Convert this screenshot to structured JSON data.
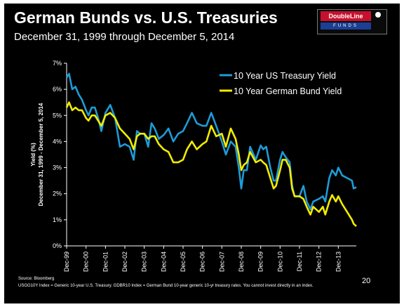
{
  "slide": {
    "title": "German Bunds vs. U.S. Treasuries",
    "subtitle": "December 31, 1999 through December 5, 2014",
    "logo_main": "DoubleLine",
    "logo_sub": "FUNDS",
    "source": "Source: Bloomberg",
    "footnote": "USGG10Y Index = Generic 10-year U.S. Treasury. GDBR10 Index = German Bund 10-year generic 10-yr treasury rates. You cannot invest directly in an index.",
    "page_number": "20"
  },
  "colors": {
    "us": "#1e9bd7",
    "german": "#f2ec00",
    "background": "#000000",
    "text": "#ffffff"
  },
  "chart_data": {
    "type": "line",
    "title": "German Bunds vs. U.S. Treasuries",
    "ylabel_lines": [
      "Yield (%)",
      "December 31, 1999 - December 5, 2014"
    ],
    "ylim": [
      0,
      7
    ],
    "yticks": [
      "0%",
      "1%",
      "2%",
      "3%",
      "4%",
      "5%",
      "6%",
      "7%"
    ],
    "xticks": [
      "Dec-99",
      "Dec-00",
      "Dec-01",
      "Dec-02",
      "Dec-03",
      "Dec-04",
      "Dec-05",
      "Dec-06",
      "Dec-07",
      "Dec-08",
      "Dec-09",
      "Dec-10",
      "Dec-11",
      "Dec-12",
      "Dec-13"
    ],
    "xlim": [
      "1999-12-31",
      "2014-12-05"
    ],
    "grid": false,
    "legend_position": "top-right",
    "series": [
      {
        "name": "10 Year US Treasury Yield",
        "color": "#1e9bd7",
        "x": [
          "1999-12-31",
          "2000-02-15",
          "2000-04-15",
          "2000-06-15",
          "2000-08-15",
          "2000-10-15",
          "2000-12-31",
          "2001-02-15",
          "2001-04-15",
          "2001-06-15",
          "2001-08-15",
          "2001-10-15",
          "2001-12-31",
          "2002-03-31",
          "2002-06-30",
          "2002-09-30",
          "2002-12-31",
          "2003-03-31",
          "2003-06-15",
          "2003-08-15",
          "2003-10-15",
          "2003-12-31",
          "2004-03-15",
          "2004-05-15",
          "2004-07-15",
          "2004-09-30",
          "2004-12-31",
          "2005-03-31",
          "2005-06-30",
          "2005-09-30",
          "2005-12-31",
          "2006-03-15",
          "2006-06-15",
          "2006-09-15",
          "2006-12-31",
          "2007-03-15",
          "2007-06-15",
          "2007-09-15",
          "2007-12-31",
          "2008-03-15",
          "2008-06-15",
          "2008-09-15",
          "2008-11-15",
          "2008-12-31",
          "2009-02-15",
          "2009-04-15",
          "2009-06-15",
          "2009-09-30",
          "2009-12-31",
          "2010-02-15",
          "2010-04-15",
          "2010-06-30",
          "2010-08-31",
          "2010-10-15",
          "2010-12-31",
          "2011-02-15",
          "2011-04-15",
          "2011-06-30",
          "2011-08-15",
          "2011-09-30",
          "2011-12-31",
          "2012-03-15",
          "2012-05-15",
          "2012-07-25",
          "2012-09-15",
          "2012-12-31",
          "2013-03-15",
          "2013-05-01",
          "2013-07-15",
          "2013-09-05",
          "2013-11-15",
          "2013-12-31",
          "2014-03-15",
          "2014-06-15",
          "2014-09-15",
          "2014-10-15",
          "2014-12-05"
        ],
        "values": [
          6.45,
          6.6,
          6.0,
          6.1,
          5.8,
          5.6,
          5.2,
          5.0,
          5.3,
          5.3,
          4.9,
          4.4,
          5.1,
          5.4,
          4.9,
          3.8,
          3.9,
          3.8,
          3.3,
          4.4,
          4.3,
          4.3,
          3.8,
          4.7,
          4.5,
          4.1,
          4.25,
          4.5,
          4.0,
          4.3,
          4.4,
          4.7,
          5.1,
          4.7,
          4.6,
          4.6,
          5.1,
          4.6,
          4.0,
          3.5,
          4.0,
          3.8,
          3.0,
          2.2,
          2.9,
          2.9,
          3.8,
          3.3,
          3.85,
          3.7,
          3.8,
          3.0,
          2.5,
          2.5,
          3.3,
          3.6,
          3.4,
          3.2,
          2.3,
          1.9,
          1.9,
          2.3,
          1.7,
          1.4,
          1.7,
          1.8,
          1.9,
          1.7,
          2.6,
          2.9,
          2.7,
          3.0,
          2.7,
          2.6,
          2.5,
          2.2,
          2.25
        ]
      },
      {
        "name": "10 Year German Bund Yield",
        "color": "#f2ec00",
        "x": [
          "1999-12-31",
          "2000-02-15",
          "2000-04-15",
          "2000-06-15",
          "2000-08-15",
          "2000-10-15",
          "2000-12-31",
          "2001-02-15",
          "2001-04-15",
          "2001-06-15",
          "2001-08-15",
          "2001-10-15",
          "2001-12-31",
          "2002-03-31",
          "2002-06-30",
          "2002-09-30",
          "2002-12-31",
          "2003-03-31",
          "2003-06-15",
          "2003-08-15",
          "2003-10-15",
          "2003-12-31",
          "2004-03-15",
          "2004-05-15",
          "2004-07-15",
          "2004-09-30",
          "2004-12-31",
          "2005-03-31",
          "2005-06-30",
          "2005-09-30",
          "2005-12-31",
          "2006-03-15",
          "2006-06-15",
          "2006-09-15",
          "2006-12-31",
          "2007-03-15",
          "2007-06-15",
          "2007-09-15",
          "2007-12-31",
          "2008-03-15",
          "2008-06-15",
          "2008-09-15",
          "2008-11-15",
          "2008-12-31",
          "2009-02-15",
          "2009-04-15",
          "2009-06-15",
          "2009-09-30",
          "2009-12-31",
          "2010-02-15",
          "2010-04-15",
          "2010-06-30",
          "2010-08-31",
          "2010-10-15",
          "2010-12-31",
          "2011-02-15",
          "2011-04-15",
          "2011-06-30",
          "2011-08-15",
          "2011-09-30",
          "2011-12-31",
          "2012-03-15",
          "2012-05-15",
          "2012-07-25",
          "2012-09-15",
          "2012-12-31",
          "2013-03-15",
          "2013-05-01",
          "2013-07-15",
          "2013-09-05",
          "2013-11-15",
          "2013-12-31",
          "2014-03-15",
          "2014-06-15",
          "2014-09-15",
          "2014-10-15",
          "2014-12-05"
        ],
        "values": [
          5.3,
          5.5,
          5.2,
          5.3,
          5.2,
          5.2,
          4.9,
          4.8,
          5.0,
          5.0,
          4.8,
          4.6,
          5.0,
          5.1,
          4.9,
          4.5,
          4.3,
          4.1,
          3.7,
          4.2,
          4.3,
          4.3,
          4.1,
          4.2,
          4.2,
          3.9,
          3.7,
          3.6,
          3.2,
          3.2,
          3.3,
          3.7,
          4.0,
          3.7,
          3.9,
          4.0,
          4.6,
          4.2,
          4.3,
          3.8,
          4.5,
          4.1,
          3.5,
          2.9,
          3.1,
          3.2,
          3.6,
          3.2,
          3.3,
          3.2,
          3.1,
          2.6,
          2.2,
          2.3,
          2.9,
          3.3,
          3.3,
          3.0,
          2.2,
          1.9,
          1.9,
          1.8,
          1.5,
          1.2,
          1.5,
          1.3,
          1.5,
          1.2,
          1.7,
          1.95,
          1.7,
          1.9,
          1.6,
          1.3,
          1.0,
          0.85,
          0.75
        ]
      }
    ]
  }
}
